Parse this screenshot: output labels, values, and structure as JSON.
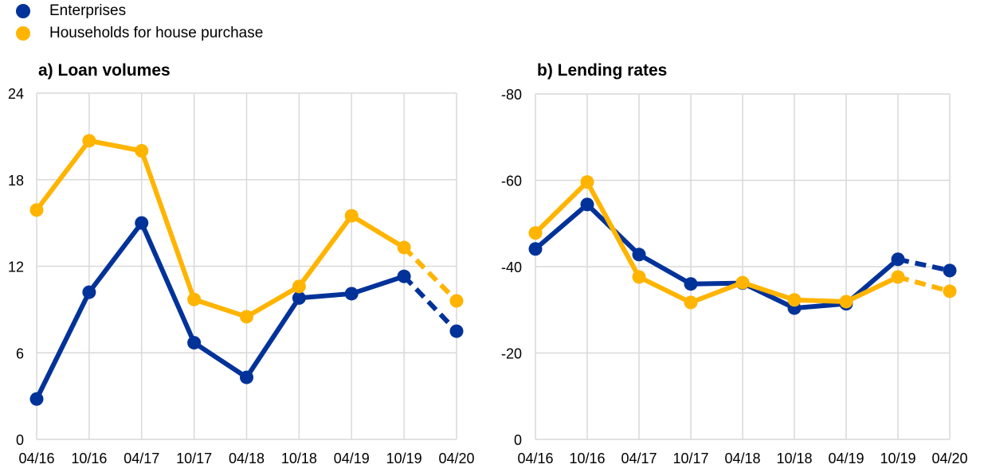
{
  "legend": [
    {
      "label": "Enterprises",
      "color": "#003299"
    },
    {
      "label": "Households for house purchase",
      "color": "#FFB400"
    }
  ],
  "chart_data": [
    {
      "type": "line",
      "title": "a) Loan volumes",
      "xlabel": "",
      "ylabel": "",
      "categories": [
        "04/16",
        "10/16",
        "04/17",
        "10/17",
        "04/18",
        "10/18",
        "04/19",
        "10/19",
        "04/20"
      ],
      "ylim": [
        0,
        24
      ],
      "yticks": [
        0,
        6,
        12,
        18,
        24
      ],
      "inverted": false,
      "grid": true,
      "dashed_from_index": 7,
      "series": [
        {
          "name": "Enterprises",
          "color": "#003299",
          "values": [
            2.8,
            10.2,
            15.0,
            6.7,
            4.3,
            9.8,
            10.1,
            11.3,
            7.5
          ]
        },
        {
          "name": "Households for house purchase",
          "color": "#FFB400",
          "values": [
            15.9,
            20.7,
            20.0,
            9.7,
            8.5,
            10.6,
            15.5,
            13.3,
            9.6
          ]
        }
      ]
    },
    {
      "type": "line",
      "title": "b) Lending rates",
      "xlabel": "",
      "ylabel": "",
      "categories": [
        "04/16",
        "10/16",
        "04/17",
        "10/17",
        "04/18",
        "10/18",
        "04/19",
        "10/19",
        "04/20"
      ],
      "ylim": [
        0,
        -80
      ],
      "yticks": [
        0,
        -20,
        -40,
        -60,
        -80
      ],
      "inverted": true,
      "grid": true,
      "dashed_from_index": 7,
      "series": [
        {
          "name": "Enterprises",
          "color": "#003299",
          "values": [
            -44.1,
            -54.4,
            -42.8,
            -36.0,
            -36.2,
            -30.4,
            -31.4,
            -41.7,
            -39.1
          ]
        },
        {
          "name": "Households for house purchase",
          "color": "#FFB400",
          "values": [
            -47.8,
            -59.6,
            -37.6,
            -31.7,
            -36.3,
            -32.3,
            -31.9,
            -37.6,
            -34.3
          ]
        }
      ]
    }
  ]
}
